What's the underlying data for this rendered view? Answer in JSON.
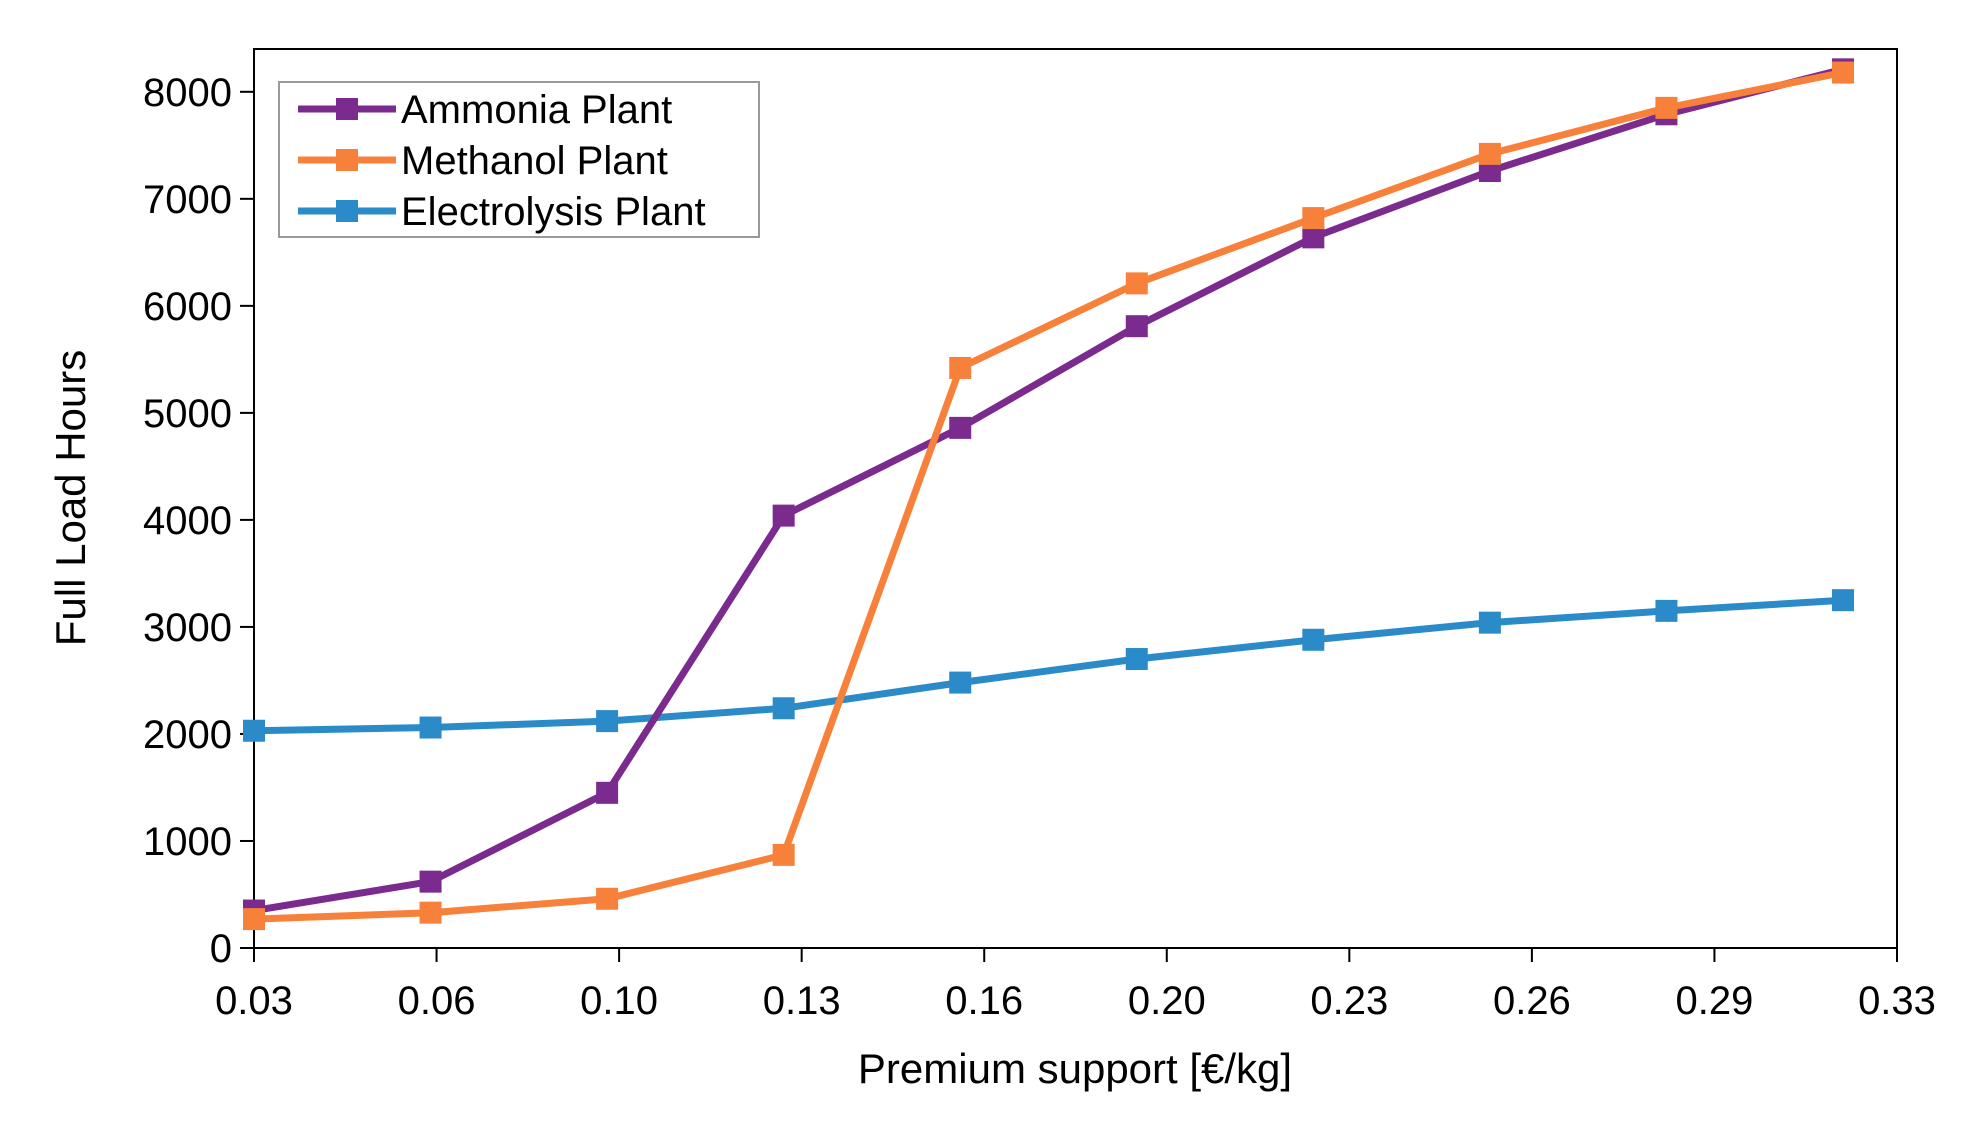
{
  "chart_data": {
    "type": "line",
    "title": "",
    "xlabel": "Premium support [€/kg]",
    "ylabel": "Full Load Hours",
    "x_tick_labels": [
      "0.03",
      "0.06",
      "0.10",
      "0.13",
      "0.16",
      "0.20",
      "0.23",
      "0.26",
      "0.29",
      "0.33"
    ],
    "y_tick_labels": [
      "0",
      "1000",
      "2000",
      "3000",
      "4000",
      "5000",
      "6000",
      "7000",
      "8000"
    ],
    "ylim": [
      0,
      8400
    ],
    "grid": false,
    "legend_position": "top-left",
    "x_points": [
      "0.03",
      "0.06",
      "0.10",
      "0.13",
      "0.16",
      "0.20",
      "0.23",
      "0.26",
      "0.29",
      "0.32"
    ],
    "series": [
      {
        "name": "Ammonia Plant",
        "color": "#7B2A8E",
        "values": [
          350,
          620,
          1450,
          4040,
          4860,
          5810,
          6640,
          7260,
          7790,
          8210
        ]
      },
      {
        "name": "Methanol Plant",
        "color": "#F7813A",
        "values": [
          270,
          330,
          460,
          870,
          5420,
          6210,
          6820,
          7420,
          7850,
          8180
        ]
      },
      {
        "name": "Electrolysis Plant",
        "color": "#2A8BC8",
        "values": [
          2030,
          2060,
          2120,
          2240,
          2480,
          2700,
          2880,
          3040,
          3150,
          3250
        ]
      }
    ]
  }
}
